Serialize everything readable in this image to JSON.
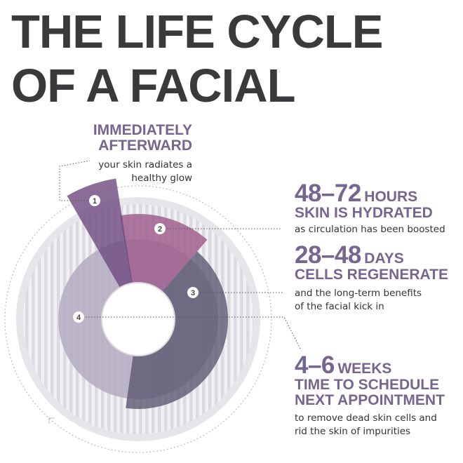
{
  "title": {
    "line1": "THE LIFE CYCLE",
    "line2": "OF A FACIAL"
  },
  "colors": {
    "title": "#3a3a3c",
    "accent": "#76658f",
    "stage1": "#6e4a7e",
    "stage2": "#a0608f",
    "stage3": "#5a5670",
    "stage4": "#b3abc0",
    "disc": "#e6e5ea"
  },
  "stages": [
    {
      "number": "1",
      "heading": [
        "IMMEDIATELY",
        "AFTERWARD"
      ],
      "description": [
        "your skin radiates a",
        "healthy glow"
      ]
    },
    {
      "number": "2",
      "range": "48–72",
      "unit": "HOURS",
      "heading": [
        "SKIN IS HYDRATED"
      ],
      "description": [
        "as circulation has been boosted"
      ]
    },
    {
      "number": "3",
      "range": "28–48",
      "unit": "DAYS",
      "heading": [
        "CELLS REGENERATE"
      ],
      "description": [
        "and the long-term benefits",
        "of the facial kick in"
      ]
    },
    {
      "number": "4",
      "range": "4–6",
      "unit": "WEEKS",
      "heading": [
        "TIME TO SCHEDULE",
        "NEXT APPOINTMENT"
      ],
      "description": [
        "to remove dead skin cells and",
        "rid the skin of impurities"
      ]
    }
  ]
}
